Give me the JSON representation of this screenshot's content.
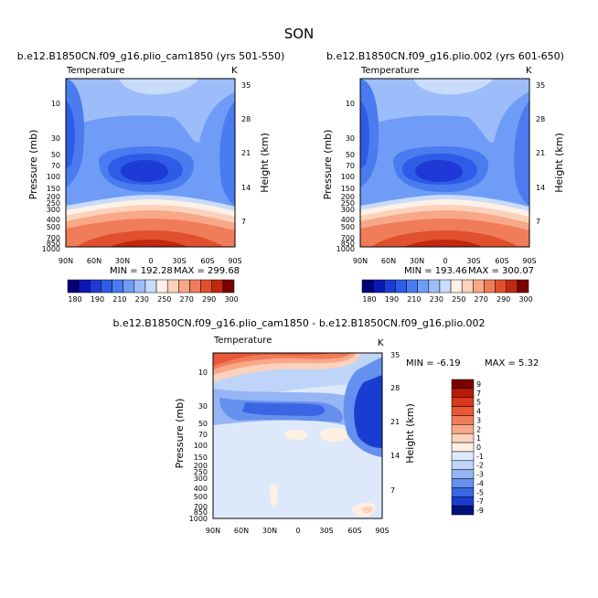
{
  "season": "SON",
  "chart_data": [
    {
      "type": "contour",
      "title": "b.e12.B1850CN.f09_g16.plio_cam1850 (yrs 501-550)",
      "variable": "Temperature",
      "units": "K",
      "xlabel": "",
      "ylabel": "Pressure (mb)",
      "y2label": "Height (km)",
      "x_ticks": [
        "90N",
        "60N",
        "30N",
        "0",
        "30S",
        "60S",
        "90S"
      ],
      "y_ticks": [
        "10",
        "30",
        "50",
        "70",
        "100",
        "150",
        "200",
        "250",
        "300",
        "400",
        "500",
        "700",
        "850",
        "1000"
      ],
      "y2_ticks": [
        "35",
        "28",
        "21",
        "14",
        "7"
      ],
      "min_label": "MIN = 192.28",
      "max_label": "MAX = 299.68",
      "min": 192.28,
      "max": 299.68,
      "levels": [
        "180",
        "190",
        "200",
        "210",
        "220",
        "230",
        "240",
        "250",
        "260",
        "270",
        "280",
        "290",
        "300"
      ],
      "colorbar_labels": [
        "180",
        "190",
        "210",
        "230",
        "250",
        "270",
        "290",
        "300"
      ]
    },
    {
      "type": "contour",
      "title": "b.e12.B1850CN.f09_g16.plio.002 (yrs 601-650)",
      "variable": "Temperature",
      "units": "K",
      "ylabel": "Pressure (mb)",
      "y2label": "Height (km)",
      "x_ticks": [
        "90N",
        "60N",
        "30N",
        "0",
        "30S",
        "60S",
        "90S"
      ],
      "y_ticks": [
        "10",
        "30",
        "50",
        "70",
        "100",
        "150",
        "200",
        "250",
        "300",
        "400",
        "500",
        "700",
        "850",
        "1000"
      ],
      "y2_ticks": [
        "35",
        "28",
        "21",
        "14",
        "7"
      ],
      "min_label": "MIN = 193.46",
      "max_label": "MAX = 300.07",
      "min": 193.46,
      "max": 300.07,
      "levels": [
        "180",
        "190",
        "200",
        "210",
        "220",
        "230",
        "240",
        "250",
        "260",
        "270",
        "280",
        "290",
        "300"
      ],
      "colorbar_labels": [
        "180",
        "190",
        "210",
        "230",
        "250",
        "270",
        "290",
        "300"
      ]
    },
    {
      "type": "contour",
      "title": "b.e12.B1850CN.f09_g16.plio_cam1850 - b.e12.B1850CN.f09_g16.plio.002",
      "variable": "Temperature",
      "units": "K",
      "ylabel": "Pressure (mb)",
      "y2label": "Height (km)",
      "x_ticks": [
        "90N",
        "60N",
        "30N",
        "0",
        "30S",
        "60S",
        "90S"
      ],
      "y_ticks": [
        "10",
        "30",
        "50",
        "70",
        "100",
        "150",
        "200",
        "250",
        "300",
        "400",
        "500",
        "700",
        "850",
        "1000"
      ],
      "y2_ticks": [
        "35",
        "28",
        "21",
        "14",
        "7"
      ],
      "min_label": "MIN = -6.19",
      "max_label": "MAX = 5.32",
      "min": -6.19,
      "max": 5.32,
      "levels": [
        "9",
        "7",
        "5",
        "4",
        "3",
        "2",
        "1",
        "0",
        "-1",
        "-2",
        "-3",
        "-4",
        "-5",
        "-7",
        "-9"
      ],
      "colorbar_labels": [
        "9",
        "7",
        "5",
        "4",
        "3",
        "2",
        "1",
        "0",
        "-1",
        "-2",
        "-3",
        "-4",
        "-5",
        "-7",
        "-9"
      ]
    }
  ],
  "colors": {
    "abs": [
      "#00007a",
      "#0a18b4",
      "#1e3ad6",
      "#2e5ce6",
      "#4a7cf0",
      "#6f9cf6",
      "#9dbdfa",
      "#c9dcfc",
      "#fff1e6",
      "#fcd2bc",
      "#f8a888",
      "#f07c5a",
      "#e0502e",
      "#c02810",
      "#7a0000"
    ],
    "diff": [
      "#7a0000",
      "#b81a08",
      "#d8381c",
      "#e85836",
      "#f07c5a",
      "#f8a888",
      "#fcd2bc",
      "#fff0e2",
      "#dde9fb",
      "#bed4f8",
      "#95b5f4",
      "#6690ee",
      "#3a66e4",
      "#1a3cd0",
      "#00107a"
    ]
  }
}
